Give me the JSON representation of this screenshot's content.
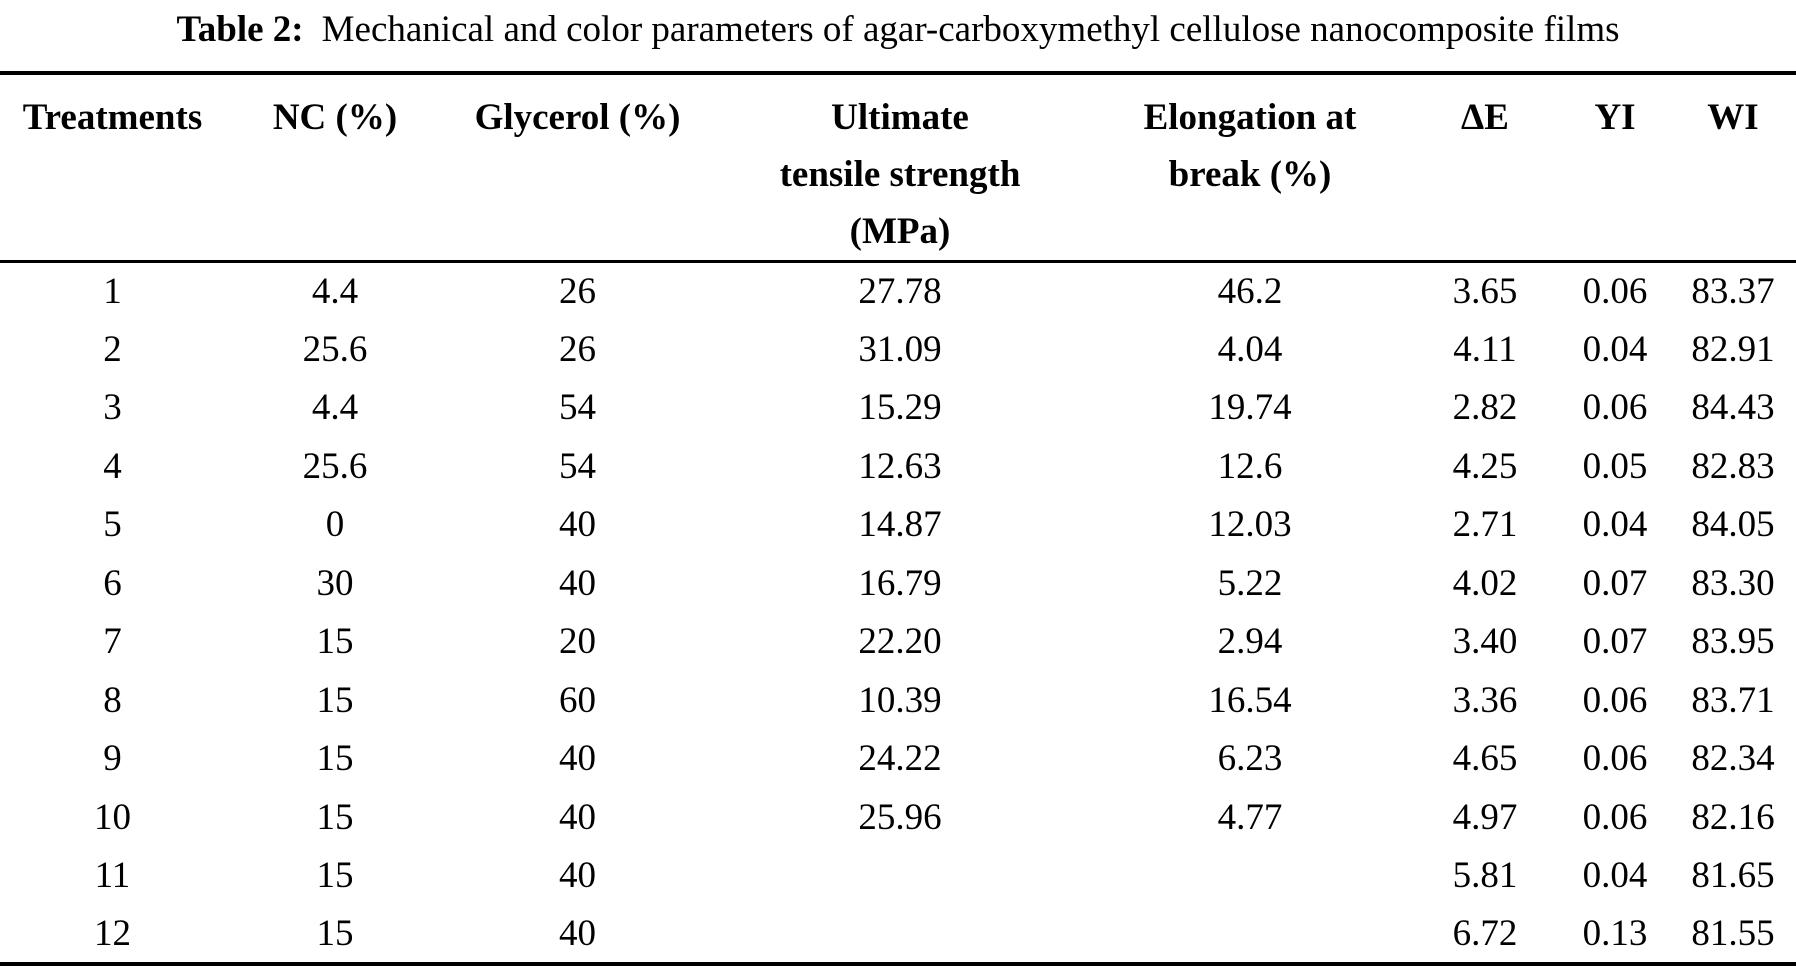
{
  "colors": {
    "background": "#ffffff",
    "text": "#000000",
    "rule": "#000000"
  },
  "table": {
    "caption": {
      "label": "Table 2:",
      "text": "Mechanical and color parameters of agar-carboxymethyl cellulose nanocomposite films"
    },
    "columns": [
      {
        "key": "treatments",
        "label": "Treatments"
      },
      {
        "key": "nc",
        "label": "NC (%)"
      },
      {
        "key": "glycerol",
        "label": "Glycerol (%)"
      },
      {
        "key": "uts",
        "label": "Ultimate\ntensile strength\n(MPa)"
      },
      {
        "key": "elongation",
        "label": "Elongation at\nbreak (%)"
      },
      {
        "key": "delta_e",
        "label": "ΔE"
      },
      {
        "key": "yi",
        "label": "YI"
      },
      {
        "key": "wi",
        "label": "WI"
      }
    ],
    "rows": [
      [
        "1",
        "4.4",
        "26",
        "27.78",
        "46.2",
        "3.65",
        "0.06",
        "83.37"
      ],
      [
        "2",
        "25.6",
        "26",
        "31.09",
        "4.04",
        "4.11",
        "0.04",
        "82.91"
      ],
      [
        "3",
        "4.4",
        "54",
        "15.29",
        "19.74",
        "2.82",
        "0.06",
        "84.43"
      ],
      [
        "4",
        "25.6",
        "54",
        "12.63",
        "12.6",
        "4.25",
        "0.05",
        "82.83"
      ],
      [
        "5",
        "0",
        "40",
        "14.87",
        "12.03",
        "2.71",
        "0.04",
        "84.05"
      ],
      [
        "6",
        "30",
        "40",
        "16.79",
        "5.22",
        "4.02",
        "0.07",
        "83.30"
      ],
      [
        "7",
        "15",
        "20",
        "22.20",
        "2.94",
        "3.40",
        "0.07",
        "83.95"
      ],
      [
        "8",
        "15",
        "60",
        "10.39",
        "16.54",
        "3.36",
        "0.06",
        "83.71"
      ],
      [
        "9",
        "15",
        "40",
        "24.22",
        "6.23",
        "4.65",
        "0.06",
        "82.34"
      ],
      [
        "10",
        "15",
        "40",
        "25.96",
        "4.77",
        "4.97",
        "0.06",
        "82.16"
      ],
      [
        "11",
        "15",
        "40",
        "",
        "",
        "5.81",
        "0.04",
        "81.65"
      ],
      [
        "12",
        "15",
        "40",
        "",
        "",
        "6.72",
        "0.13",
        "81.55"
      ]
    ]
  }
}
